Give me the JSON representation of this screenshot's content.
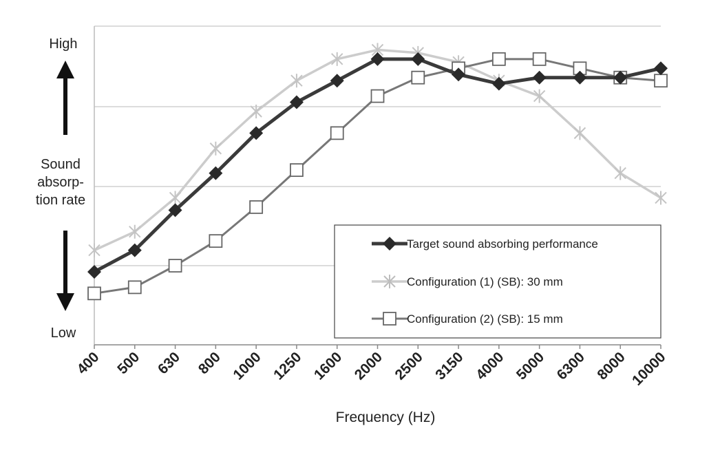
{
  "chart_data": {
    "type": "line",
    "title": "",
    "xlabel": "Frequency (Hz)",
    "ylabel": [
      "Sound",
      "absorp-",
      "tion rate"
    ],
    "y_high": "High",
    "y_low": "Low",
    "categories": [
      "400",
      "500",
      "630",
      "800",
      "1000",
      "1250",
      "1600",
      "2000",
      "2500",
      "3150",
      "4000",
      "5000",
      "6300",
      "8000",
      "10000"
    ],
    "ylim": [
      0,
      1
    ],
    "grid": "horizontal",
    "legend_position": "bottom-right",
    "series": [
      {
        "name": "Target sound absorbing performance",
        "color": "#3a3a3a",
        "marker": "diamond",
        "values": [
          0.23,
          0.3,
          0.43,
          0.55,
          0.68,
          0.78,
          0.85,
          0.92,
          0.92,
          0.87,
          0.84,
          0.86,
          0.86,
          0.86,
          0.89
        ]
      },
      {
        "name": "Configuration (1) (SB): 30 mm",
        "color": "#cccccc",
        "marker": "asterisk",
        "values": [
          0.3,
          0.36,
          0.47,
          0.63,
          0.75,
          0.85,
          0.92,
          0.95,
          0.94,
          0.91,
          0.85,
          0.8,
          0.68,
          0.55,
          0.47
        ]
      },
      {
        "name": "Configuration (2) (SB): 15 mm",
        "color": "#777777",
        "marker": "square",
        "values": [
          0.16,
          0.18,
          0.25,
          0.33,
          0.44,
          0.56,
          0.68,
          0.8,
          0.86,
          0.89,
          0.92,
          0.92,
          0.89,
          0.86,
          0.85
        ]
      }
    ]
  }
}
